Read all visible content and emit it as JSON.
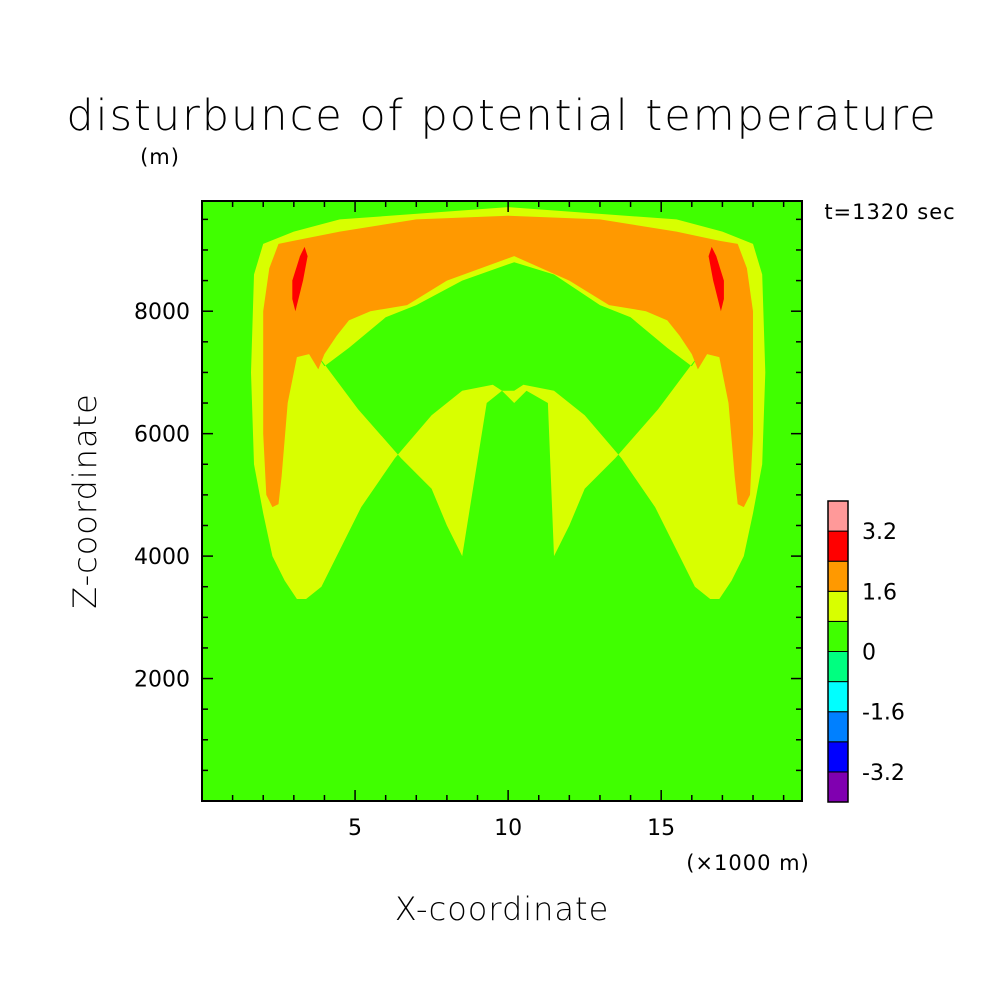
{
  "chart_data": {
    "type": "contour",
    "title": "disturbunce of potential temperature",
    "ylabel_unit": "(m)",
    "xlabel": "X-coordinate",
    "ylabel": "Z-coordinate",
    "xlabel_unit": "(×1000 m)",
    "time_label": "t=1320 sec",
    "xlim": [
      0,
      19.6
    ],
    "ylim": [
      0,
      9800
    ],
    "x_ticks": [
      5,
      10,
      15
    ],
    "x_ticklabels": [
      "5",
      "10",
      "15"
    ],
    "y_ticks": [
      2000,
      4000,
      6000,
      8000
    ],
    "y_ticklabels": [
      "2000",
      "4000",
      "6000",
      "8000"
    ],
    "background_level_color": "#40ff00",
    "colorbar": {
      "levels": [
        -4.0,
        -3.2,
        -2.4,
        -1.6,
        -0.8,
        0,
        0.8,
        1.6,
        2.4,
        3.2,
        4.0
      ],
      "colors": [
        "#8000b0",
        "#0000ff",
        "#0080ff",
        "#00ffff",
        "#00ff80",
        "#40ff00",
        "#d8ff00",
        "#ff9900",
        "#ff0000",
        "#ff9999"
      ],
      "labels": [
        "3.2",
        "1.6",
        "0",
        "-1.6",
        "-3.2"
      ],
      "label_values": [
        3.2,
        1.6,
        0,
        -1.6,
        -3.2
      ]
    },
    "regions": [
      {
        "name": "warm-band-yellow",
        "color": "#d8ff00",
        "range": [
          0.8,
          1.6
        ],
        "outer": [
          [
            3.0,
            9300
          ],
          [
            4.5,
            9500
          ],
          [
            10.0,
            9700
          ],
          [
            15.5,
            9500
          ],
          [
            17.0,
            9300
          ],
          [
            18.0,
            9100
          ],
          [
            18.3,
            8600
          ],
          [
            18.4,
            7000
          ],
          [
            18.3,
            5500
          ],
          [
            18.0,
            4700
          ],
          [
            17.7,
            4000
          ],
          [
            17.3,
            3600
          ],
          [
            16.9,
            3300
          ],
          [
            16.6,
            3300
          ],
          [
            16.1,
            3500
          ],
          [
            15.6,
            4000
          ],
          [
            14.8,
            4800
          ],
          [
            13.7,
            5600
          ],
          [
            12.5,
            6300
          ],
          [
            11.5,
            6700
          ],
          [
            10.5,
            6800
          ],
          [
            10.2,
            6700
          ],
          [
            9.8,
            6700
          ],
          [
            9.5,
            6800
          ],
          [
            8.5,
            6700
          ],
          [
            7.5,
            6300
          ],
          [
            6.3,
            5600
          ],
          [
            5.2,
            4800
          ],
          [
            4.4,
            4000
          ],
          [
            3.9,
            3500
          ],
          [
            3.4,
            3300
          ],
          [
            3.1,
            3300
          ],
          [
            2.7,
            3600
          ],
          [
            2.3,
            4000
          ],
          [
            2.0,
            4700
          ],
          [
            1.7,
            5500
          ],
          [
            1.6,
            7000
          ],
          [
            1.7,
            8600
          ],
          [
            2.0,
            9100
          ]
        ],
        "hole": [
          [
            4.0,
            7100
          ],
          [
            4.8,
            7400
          ],
          [
            6.0,
            7900
          ],
          [
            7.0,
            8100
          ],
          [
            8.5,
            8500
          ],
          [
            10.2,
            8800
          ],
          [
            11.5,
            8600
          ],
          [
            13.0,
            8100
          ],
          [
            14.0,
            7900
          ],
          [
            15.2,
            7400
          ],
          [
            16.0,
            7100
          ],
          [
            16.4,
            7400
          ],
          [
            14.9,
            6400
          ],
          [
            13.5,
            5600
          ],
          [
            12.5,
            5100
          ],
          [
            12.0,
            4500
          ],
          [
            11.5,
            4000
          ],
          [
            11.3,
            6500
          ],
          [
            10.6,
            6700
          ],
          [
            10.2,
            6500
          ],
          [
            9.8,
            6700
          ],
          [
            9.3,
            6500
          ],
          [
            8.5,
            4000
          ],
          [
            8.0,
            4500
          ],
          [
            7.5,
            5100
          ],
          [
            6.5,
            5600
          ],
          [
            5.1,
            6400
          ],
          [
            3.6,
            7400
          ]
        ]
      },
      {
        "name": "warm-band-orange",
        "color": "#ff9900",
        "range": [
          1.6,
          2.4
        ],
        "outer": [
          [
            3.0,
            9150
          ],
          [
            4.5,
            9300
          ],
          [
            7.0,
            9500
          ],
          [
            10.0,
            9560
          ],
          [
            13.0,
            9500
          ],
          [
            15.5,
            9300
          ],
          [
            16.9,
            9150
          ],
          [
            17.5,
            9100
          ],
          [
            17.8,
            8700
          ],
          [
            18.0,
            8000
          ],
          [
            18.0,
            6000
          ],
          [
            17.9,
            5000
          ],
          [
            17.7,
            4800
          ],
          [
            17.5,
            4850
          ],
          [
            17.4,
            5300
          ],
          [
            17.2,
            6500
          ],
          [
            16.9,
            7250
          ],
          [
            16.5,
            7300
          ],
          [
            16.2,
            7050
          ],
          [
            16.0,
            7300
          ],
          [
            15.6,
            7600
          ],
          [
            15.2,
            7850
          ],
          [
            14.5,
            8000
          ],
          [
            13.3,
            8100
          ],
          [
            12.0,
            8500
          ],
          [
            10.2,
            8900
          ],
          [
            8.0,
            8500
          ],
          [
            6.7,
            8100
          ],
          [
            5.5,
            8000
          ],
          [
            4.8,
            7850
          ],
          [
            4.4,
            7600
          ],
          [
            4.0,
            7300
          ],
          [
            3.8,
            7050
          ],
          [
            3.5,
            7300
          ],
          [
            3.1,
            7250
          ],
          [
            2.8,
            6500
          ],
          [
            2.6,
            5300
          ],
          [
            2.5,
            4850
          ],
          [
            2.3,
            4800
          ],
          [
            2.1,
            5000
          ],
          [
            2.0,
            6000
          ],
          [
            2.0,
            8000
          ],
          [
            2.2,
            8700
          ],
          [
            2.5,
            9100
          ]
        ]
      },
      {
        "name": "warm-core-left",
        "color": "#ff0000",
        "range": [
          2.4,
          3.2
        ],
        "outer": [
          [
            3.2,
            8900
          ],
          [
            3.35,
            9050
          ],
          [
            3.45,
            8900
          ],
          [
            3.3,
            8500
          ],
          [
            3.05,
            8000
          ],
          [
            2.95,
            8200
          ],
          [
            2.95,
            8500
          ]
        ]
      },
      {
        "name": "warm-core-right",
        "color": "#ff0000",
        "range": [
          2.4,
          3.2
        ],
        "outer": [
          [
            16.8,
            8900
          ],
          [
            16.65,
            9050
          ],
          [
            16.55,
            8900
          ],
          [
            16.7,
            8500
          ],
          [
            16.95,
            8000
          ],
          [
            17.05,
            8200
          ],
          [
            17.05,
            8500
          ]
        ]
      }
    ]
  }
}
